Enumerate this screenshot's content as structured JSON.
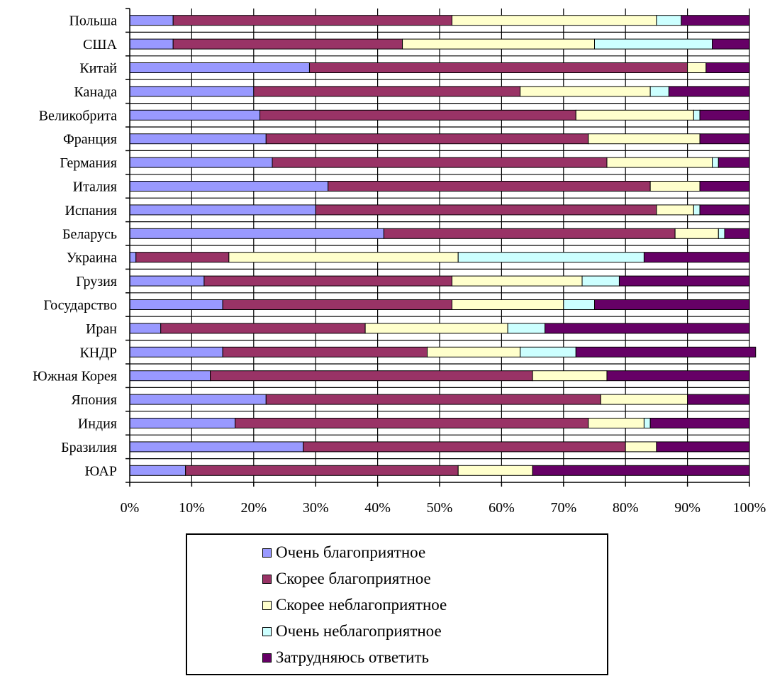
{
  "chart_data": {
    "type": "bar",
    "orientation": "horizontal",
    "stacked": "100%",
    "categories": [
      "Польша",
      "США",
      "Китай",
      "Канада",
      "Великобрита",
      "Франция",
      "Германия",
      "Италия",
      "Испания",
      "Беларусь",
      "Украина",
      "Грузия",
      "Государство",
      "Иран",
      "КНДР",
      "Южная Корея",
      "Япония",
      "Индия",
      "Бразилия",
      "ЮАР"
    ],
    "series": [
      {
        "name": "Очень благоприятное",
        "color": "#9999ff",
        "values": [
          7,
          7,
          29,
          20,
          21,
          22,
          23,
          32,
          30,
          41,
          1,
          12,
          15,
          5,
          15,
          13,
          22,
          17,
          28,
          9
        ]
      },
      {
        "name": "Скорее благоприятное",
        "color": "#993366",
        "values": [
          45,
          37,
          61,
          43,
          51,
          52,
          54,
          52,
          55,
          47,
          15,
          40,
          37,
          33,
          33,
          52,
          54,
          57,
          52,
          44
        ]
      },
      {
        "name": "Скорее неблагоприятное",
        "color": "#ffffcc",
        "values": [
          33,
          31,
          3,
          21,
          19,
          18,
          17,
          8,
          6,
          7,
          37,
          21,
          18,
          23,
          15,
          12,
          14,
          9,
          5,
          12
        ]
      },
      {
        "name": "Очень неблагоприятное",
        "color": "#ccffff",
        "values": [
          4,
          19,
          0,
          3,
          1,
          0,
          1,
          0,
          1,
          1,
          30,
          6,
          5,
          6,
          9,
          0,
          0,
          1,
          0,
          0
        ]
      },
      {
        "name": "Затрудняюсь ответить",
        "color": "#660066",
        "values": [
          11,
          6,
          7,
          13,
          8,
          8,
          5,
          8,
          8,
          4,
          17,
          21,
          25,
          33,
          29,
          23,
          10,
          16,
          15,
          35
        ]
      }
    ],
    "xlim": [
      0,
      100
    ],
    "xticks": [
      "0%",
      "10%",
      "20%",
      "30%",
      "40%",
      "50%",
      "60%",
      "70%",
      "80%",
      "90%",
      "100%"
    ],
    "grid": true,
    "legend": "bottom"
  }
}
